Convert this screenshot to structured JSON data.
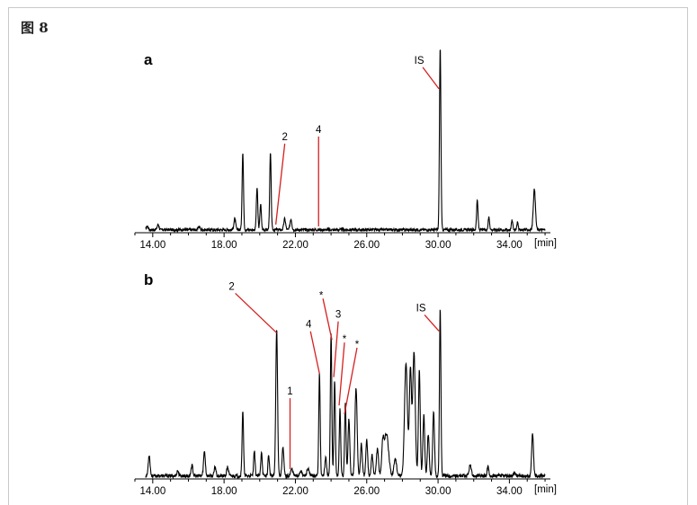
{
  "figure": {
    "title": "图 8"
  },
  "colors": {
    "trace": "#000000",
    "annotation": "#d62020",
    "frame": "#c9c9c9"
  },
  "chart_data": [
    {
      "type": "line",
      "panel_label": "a",
      "xlabel": "[min]",
      "xlim": [
        13.0,
        36.3
      ],
      "ylim": [
        0,
        100
      ],
      "x_ticks": [
        "14.00",
        "18.00",
        "22.00",
        "26.00",
        "30.00",
        "34.00"
      ],
      "x_tick_values": [
        14,
        18,
        22,
        26,
        30,
        34
      ],
      "baseline_noise": 1.5,
      "peaks": [
        {
          "x": 13.7,
          "h": 2,
          "w": 0.05
        },
        {
          "x": 14.3,
          "h": 3,
          "w": 0.05
        },
        {
          "x": 16.6,
          "h": 2,
          "w": 0.05
        },
        {
          "x": 18.6,
          "h": 6,
          "w": 0.05
        },
        {
          "x": 19.05,
          "h": 42,
          "w": 0.04
        },
        {
          "x": 19.85,
          "h": 23,
          "w": 0.04
        },
        {
          "x": 20.05,
          "h": 14,
          "w": 0.04
        },
        {
          "x": 20.6,
          "h": 42,
          "w": 0.04
        },
        {
          "x": 21.4,
          "h": 6,
          "w": 0.05
        },
        {
          "x": 21.75,
          "h": 6,
          "w": 0.05
        },
        {
          "x": 30.12,
          "h": 100,
          "w": 0.04
        },
        {
          "x": 32.2,
          "h": 16,
          "w": 0.04
        },
        {
          "x": 32.85,
          "h": 7,
          "w": 0.04
        },
        {
          "x": 34.15,
          "h": 5,
          "w": 0.04
        },
        {
          "x": 34.45,
          "h": 4,
          "w": 0.04
        },
        {
          "x": 35.4,
          "h": 22,
          "w": 0.06
        }
      ],
      "annotations": [
        {
          "label": "IS",
          "x": 30.05,
          "y": 77
        },
        {
          "label": "2",
          "x": 20.9,
          "y": 3
        },
        {
          "label": "4",
          "x": 23.3,
          "y": 2
        }
      ]
    },
    {
      "type": "line",
      "panel_label": "b",
      "xlabel": "[min]",
      "xlim": [
        13.0,
        36.3
      ],
      "ylim": [
        0,
        100
      ],
      "x_ticks": [
        "14.00",
        "18.00",
        "22.00",
        "26.00",
        "30.00",
        "34.00"
      ],
      "x_tick_values": [
        14,
        18,
        22,
        26,
        30,
        34
      ],
      "baseline_noise": 2,
      "peaks": [
        {
          "x": 13.8,
          "h": 12,
          "w": 0.05
        },
        {
          "x": 15.4,
          "h": 3,
          "w": 0.05
        },
        {
          "x": 16.2,
          "h": 6,
          "w": 0.05
        },
        {
          "x": 16.9,
          "h": 14,
          "w": 0.05
        },
        {
          "x": 17.5,
          "h": 5,
          "w": 0.05
        },
        {
          "x": 18.2,
          "h": 5,
          "w": 0.05
        },
        {
          "x": 19.05,
          "h": 37,
          "w": 0.04
        },
        {
          "x": 19.7,
          "h": 14,
          "w": 0.04
        },
        {
          "x": 20.1,
          "h": 14,
          "w": 0.04
        },
        {
          "x": 20.5,
          "h": 12,
          "w": 0.04
        },
        {
          "x": 20.95,
          "h": 83,
          "w": 0.05
        },
        {
          "x": 21.3,
          "h": 16,
          "w": 0.05
        },
        {
          "x": 21.8,
          "h": 4,
          "w": 0.06
        },
        {
          "x": 22.3,
          "h": 3,
          "w": 0.06
        },
        {
          "x": 22.7,
          "h": 4,
          "w": 0.06
        },
        {
          "x": 23.35,
          "h": 58,
          "w": 0.04
        },
        {
          "x": 23.7,
          "h": 10,
          "w": 0.05
        },
        {
          "x": 24.0,
          "h": 80,
          "w": 0.04
        },
        {
          "x": 24.2,
          "h": 54,
          "w": 0.04
        },
        {
          "x": 24.5,
          "h": 38,
          "w": 0.04
        },
        {
          "x": 24.8,
          "h": 42,
          "w": 0.04
        },
        {
          "x": 25.0,
          "h": 32,
          "w": 0.05
        },
        {
          "x": 25.4,
          "h": 50,
          "w": 0.06
        },
        {
          "x": 25.7,
          "h": 18,
          "w": 0.05
        },
        {
          "x": 26.0,
          "h": 20,
          "w": 0.05
        },
        {
          "x": 26.3,
          "h": 12,
          "w": 0.05
        },
        {
          "x": 26.6,
          "h": 15,
          "w": 0.06
        },
        {
          "x": 26.9,
          "h": 16,
          "w": 0.06
        },
        {
          "x": 27.1,
          "h": 24,
          "w": 0.12
        },
        {
          "x": 27.6,
          "h": 10,
          "w": 0.07
        },
        {
          "x": 28.2,
          "h": 64,
          "w": 0.08
        },
        {
          "x": 28.45,
          "h": 60,
          "w": 0.06
        },
        {
          "x": 28.65,
          "h": 70,
          "w": 0.07
        },
        {
          "x": 28.95,
          "h": 60,
          "w": 0.05
        },
        {
          "x": 29.2,
          "h": 34,
          "w": 0.05
        },
        {
          "x": 29.45,
          "h": 24,
          "w": 0.05
        },
        {
          "x": 29.75,
          "h": 36,
          "w": 0.05
        },
        {
          "x": 30.12,
          "h": 95,
          "w": 0.04
        },
        {
          "x": 31.8,
          "h": 6,
          "w": 0.06
        },
        {
          "x": 32.8,
          "h": 5,
          "w": 0.05
        },
        {
          "x": 34.3,
          "h": 2,
          "w": 0.05
        },
        {
          "x": 35.3,
          "h": 24,
          "w": 0.05
        }
      ],
      "annotations": [
        {
          "label": "2",
          "x": 20.95,
          "y": 81
        },
        {
          "label": "1",
          "x": 21.7,
          "y": 4
        },
        {
          "label": "4",
          "x": 23.35,
          "y": 58
        },
        {
          "label": "*",
          "x": 24.05,
          "y": 77
        },
        {
          "label": "3",
          "x": 24.15,
          "y": 56
        },
        {
          "label": "*",
          "x": 24.45,
          "y": 40
        },
        {
          "label": "*",
          "x": 24.75,
          "y": 35
        },
        {
          "label": "IS",
          "x": 30.05,
          "y": 82
        }
      ]
    }
  ]
}
